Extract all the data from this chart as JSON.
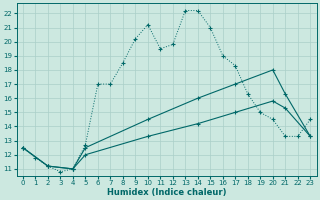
{
  "xlabel": "Humidex (Indice chaleur)",
  "bg_color": "#cce8e0",
  "line_color": "#006868",
  "grid_color": "#aacfc8",
  "xlim": [
    -0.5,
    23.5
  ],
  "ylim": [
    10.5,
    22.7
  ],
  "xticks": [
    0,
    1,
    2,
    3,
    4,
    5,
    6,
    7,
    8,
    9,
    10,
    11,
    12,
    13,
    14,
    15,
    16,
    17,
    18,
    19,
    20,
    21,
    22,
    23
  ],
  "yticks": [
    11,
    12,
    13,
    14,
    15,
    16,
    17,
    18,
    19,
    20,
    21,
    22
  ],
  "line1_x": [
    0,
    1,
    2,
    3,
    4,
    5,
    6,
    7,
    8,
    9,
    10,
    11,
    12,
    13,
    14,
    15,
    16,
    17,
    18,
    19,
    20,
    21,
    22,
    23
  ],
  "line1_y": [
    12.5,
    11.8,
    11.2,
    10.8,
    11.0,
    12.7,
    17.0,
    17.0,
    18.5,
    20.2,
    21.2,
    19.5,
    19.8,
    22.2,
    22.2,
    21.0,
    19.0,
    18.3,
    16.3,
    15.0,
    14.5,
    13.3,
    13.3,
    14.5
  ],
  "line2_x": [
    0,
    2,
    4,
    5,
    10,
    14,
    17,
    20,
    21,
    23
  ],
  "line2_y": [
    12.5,
    11.2,
    11.0,
    12.5,
    14.5,
    16.0,
    17.0,
    18.0,
    16.3,
    13.3
  ],
  "line3_x": [
    0,
    2,
    4,
    5,
    10,
    14,
    17,
    20,
    21,
    23
  ],
  "line3_y": [
    12.5,
    11.2,
    11.0,
    12.0,
    13.3,
    14.2,
    15.0,
    15.8,
    15.3,
    13.3
  ]
}
